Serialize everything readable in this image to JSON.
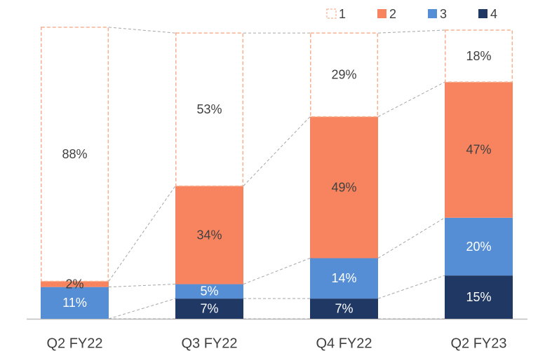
{
  "chart_data": {
    "type": "stacked_bar",
    "categories": [
      "Q2 FY22",
      "Q3 FY22",
      "Q4 FY22",
      "Q2 FY23"
    ],
    "series": [
      {
        "name": "4",
        "color": "#1f3864",
        "label_color": "#ffffff",
        "values": [
          0,
          7,
          7,
          15
        ],
        "value_labels": [
          null,
          "7%",
          "7%",
          "15%"
        ]
      },
      {
        "name": "3",
        "color": "#558ed5",
        "label_color": "#ffffff",
        "values": [
          11,
          5,
          14,
          20
        ],
        "value_labels": [
          "11%",
          "5%",
          "14%",
          "20%"
        ]
      },
      {
        "name": "2",
        "color": "#f8845f",
        "label_color": "#404040",
        "values": [
          2,
          34,
          49,
          47
        ],
        "value_labels": [
          "2%",
          "34%",
          "49%",
          "47%"
        ]
      },
      {
        "name": "1",
        "color": "#f9b08f",
        "dashed": true,
        "label_color": "#404040",
        "values": [
          88,
          53,
          29,
          18
        ],
        "value_labels": [
          "88%",
          "53%",
          "29%",
          "18%"
        ]
      }
    ],
    "ylim": [
      0,
      100
    ],
    "legend": "top-right",
    "connectors": true
  }
}
